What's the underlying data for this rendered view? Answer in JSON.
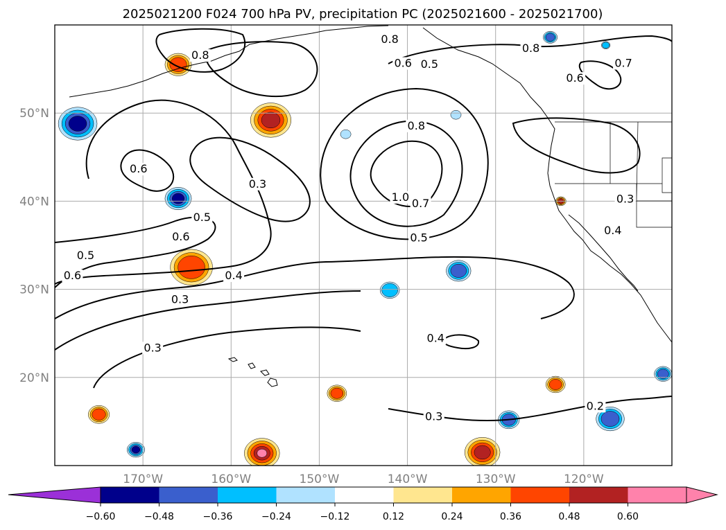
{
  "title": "2025021200 F024 700 hPa PV, precipitation PC (2025021600 - 2025021700)",
  "map": {
    "lon_range": [
      -180,
      -110
    ],
    "lat_range": [
      10,
      60
    ],
    "gridlines": true,
    "lat_ticks": [
      {
        "value": 50,
        "label": "50°N"
      },
      {
        "value": 40,
        "label": "40°N"
      },
      {
        "value": 30,
        "label": "30°N"
      },
      {
        "value": 20,
        "label": "20°N"
      }
    ],
    "lon_ticks": [
      {
        "value": -170,
        "label": "170°W"
      },
      {
        "value": -160,
        "label": "160°W"
      },
      {
        "value": -150,
        "label": "150°W"
      },
      {
        "value": -140,
        "label": "140°W"
      },
      {
        "value": -130,
        "label": "130°W"
      },
      {
        "value": -120,
        "label": "120°W"
      }
    ]
  },
  "pv_contour_labels": [
    {
      "text": "0.8",
      "lon": -163.5,
      "lat": 56.3
    },
    {
      "text": "0.8",
      "lon": -142,
      "lat": 58.1
    },
    {
      "text": "0.8",
      "lon": -126,
      "lat": 57.1
    },
    {
      "text": "0.6",
      "lon": -140.5,
      "lat": 55.4
    },
    {
      "text": "0.5",
      "lon": -137.5,
      "lat": 55.3
    },
    {
      "text": "0.6",
      "lon": -121,
      "lat": 53.7
    },
    {
      "text": "0.7",
      "lon": -115.5,
      "lat": 55.4
    },
    {
      "text": "0.8",
      "lon": -139,
      "lat": 48.3
    },
    {
      "text": "0.6",
      "lon": -170.5,
      "lat": 43.4
    },
    {
      "text": "0.3",
      "lon": -157,
      "lat": 41.7
    },
    {
      "text": "1.0",
      "lon": -140.8,
      "lat": 40.2
    },
    {
      "text": "0.7",
      "lon": -138.5,
      "lat": 39.5
    },
    {
      "text": "0.3",
      "lon": -115.3,
      "lat": 40.0
    },
    {
      "text": "0.5",
      "lon": -163.3,
      "lat": 37.9
    },
    {
      "text": "0.6",
      "lon": -165.7,
      "lat": 35.7
    },
    {
      "text": "0.5",
      "lon": -138.7,
      "lat": 35.6
    },
    {
      "text": "0.4",
      "lon": -116.7,
      "lat": 36.4
    },
    {
      "text": "0.5",
      "lon": -176.5,
      "lat": 33.6
    },
    {
      "text": "0.6",
      "lon": -178,
      "lat": 31.3
    },
    {
      "text": "0.4",
      "lon": -159.7,
      "lat": 31.3
    },
    {
      "text": "0.3",
      "lon": -165.8,
      "lat": 28.6
    },
    {
      "text": "0.4",
      "lon": -136.8,
      "lat": 24.2
    },
    {
      "text": "0.3",
      "lon": -168.9,
      "lat": 23.1
    },
    {
      "text": "0.3",
      "lon": -137,
      "lat": 15.3
    },
    {
      "text": "0.2",
      "lon": -118.7,
      "lat": 16.5
    }
  ],
  "precip_pc_blobs": [
    {
      "lon": -177.4,
      "lat": 48.8,
      "r": 2.2,
      "value": -0.55
    },
    {
      "lon": -166,
      "lat": 40.3,
      "r": 1.5,
      "value": -0.5
    },
    {
      "lon": -164.5,
      "lat": 32.5,
      "r": 2.4,
      "value": 0.45
    },
    {
      "lon": -166,
      "lat": 55.5,
      "r": 1.5,
      "value": 0.45
    },
    {
      "lon": -155.5,
      "lat": 49.2,
      "r": 2.3,
      "value": 0.55
    },
    {
      "lon": -147,
      "lat": 47.6,
      "r": 0.6,
      "value": -0.2
    },
    {
      "lon": -134.5,
      "lat": 49.8,
      "r": 0.6,
      "value": -0.2
    },
    {
      "lon": -175,
      "lat": 15.8,
      "r": 1.2,
      "value": 0.45
    },
    {
      "lon": -170.8,
      "lat": 11.8,
      "r": 1.0,
      "value": -0.5
    },
    {
      "lon": -156.5,
      "lat": 11.4,
      "r": 2.0,
      "value": 0.62
    },
    {
      "lon": -131.5,
      "lat": 11.5,
      "r": 2.0,
      "value": 0.55
    },
    {
      "lon": -148,
      "lat": 18.2,
      "r": 1.1,
      "value": 0.42
    },
    {
      "lon": -128.5,
      "lat": 15.2,
      "r": 1.2,
      "value": -0.45
    },
    {
      "lon": -117,
      "lat": 15.3,
      "r": 1.6,
      "value": -0.4
    },
    {
      "lon": -123.2,
      "lat": 19.2,
      "r": 1.1,
      "value": 0.4
    },
    {
      "lon": -111,
      "lat": 20.4,
      "r": 1.0,
      "value": -0.4
    },
    {
      "lon": -134.2,
      "lat": 32.1,
      "r": 1.4,
      "value": -0.45
    },
    {
      "lon": -142,
      "lat": 29.9,
      "r": 1.1,
      "value": -0.3
    },
    {
      "lon": -122.6,
      "lat": 40.0,
      "r": 0.6,
      "value": 0.5
    },
    {
      "lon": -123.8,
      "lat": 58.6,
      "r": 0.8,
      "value": -0.4
    },
    {
      "lon": -117.5,
      "lat": 57.7,
      "r": 0.5,
      "value": -0.3
    }
  ],
  "colorbar": {
    "ticks": [
      "−0.60",
      "−0.48",
      "−0.36",
      "−0.24",
      "−0.12",
      "0.12",
      "0.24",
      "0.36",
      "0.48",
      "0.60"
    ],
    "colors": [
      "#9b30d8",
      "#00008b",
      "#3a5fcd",
      "#00bfff",
      "#b0e2ff",
      "#ffffff",
      "#ffe68f",
      "#ffa500",
      "#ff4500",
      "#b22222",
      "#ff82ab",
      "#ff82ab"
    ]
  }
}
